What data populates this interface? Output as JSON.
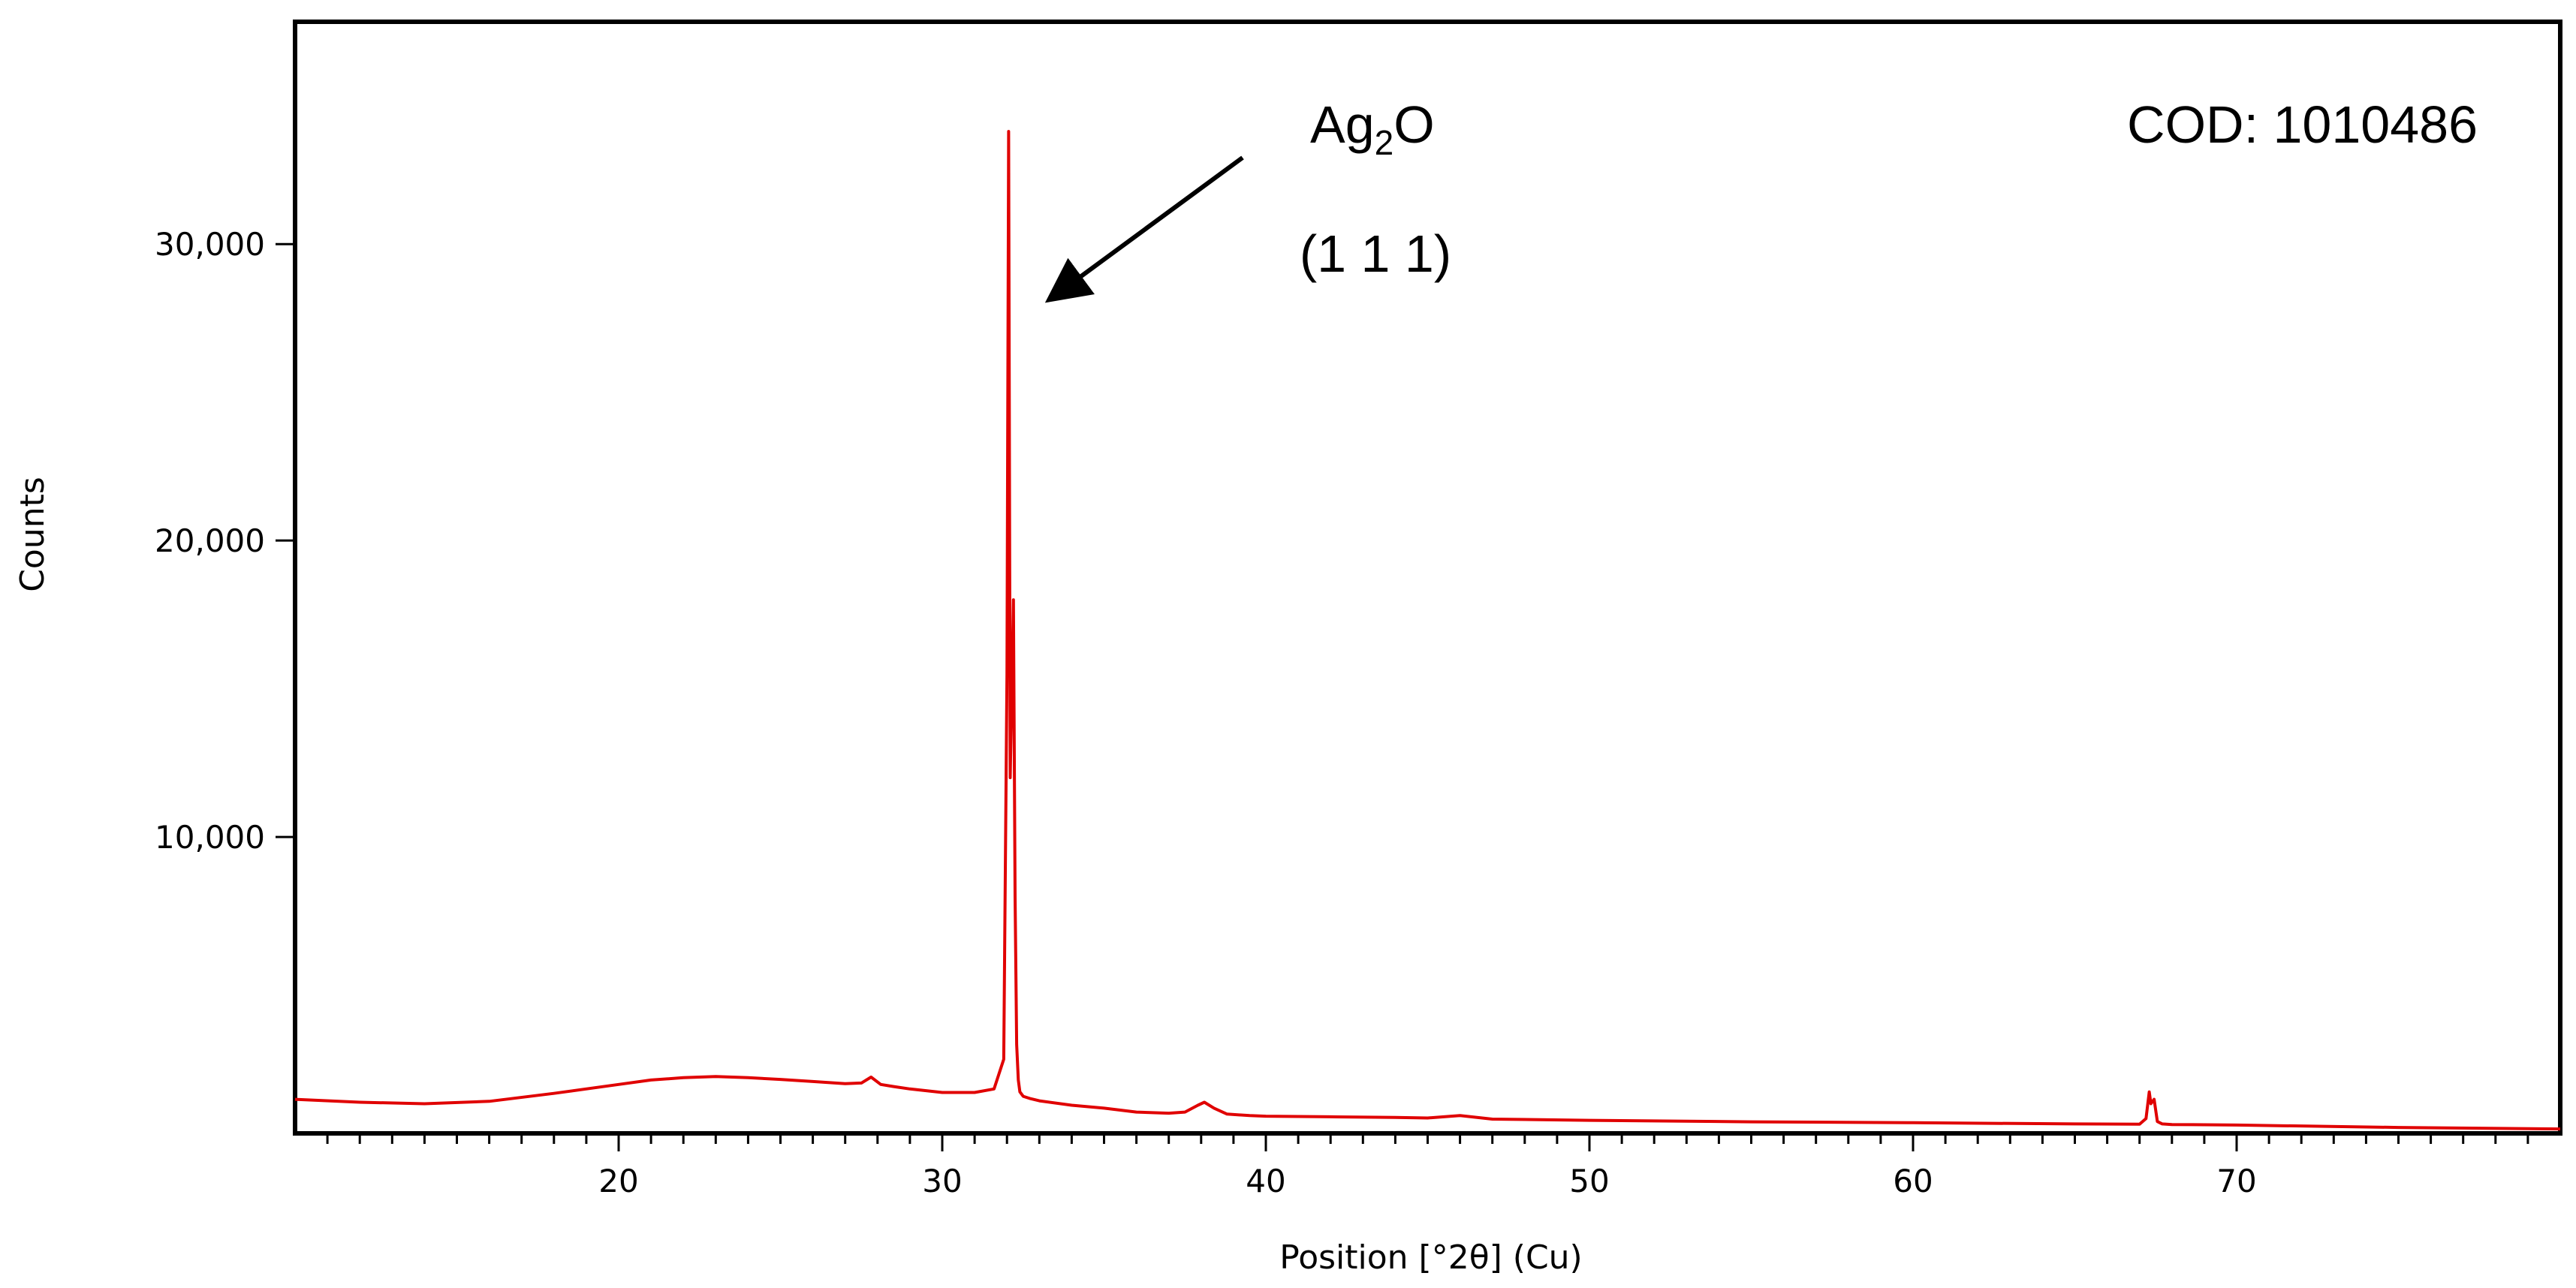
{
  "chart_data": {
    "type": "line",
    "xlabel": "Position [°2θ] (Cu)",
    "ylabel": "Counts",
    "xlim": [
      10,
      80
    ],
    "ylim": [
      0,
      37500
    ],
    "x_ticks": [
      20,
      30,
      40,
      50,
      60,
      70
    ],
    "x_tick_labels": [
      "20",
      "30",
      "40",
      "50",
      "60",
      "70"
    ],
    "y_ticks": [
      10000,
      20000,
      30000
    ],
    "y_tick_labels": [
      "10,000",
      "20,000",
      "30,000"
    ],
    "grid": false,
    "legend": false,
    "series": [
      {
        "color": "#e00000",
        "x": [
          10,
          12,
          14,
          16,
          18,
          20,
          21,
          22,
          23,
          24,
          25,
          26,
          27,
          27.5,
          27.8,
          28.1,
          28.5,
          29,
          30,
          31,
          31.6,
          31.9,
          32.0,
          32.05,
          32.1,
          32.15,
          32.2,
          32.25,
          32.3,
          32.35,
          32.4,
          32.5,
          32.7,
          33,
          34,
          35,
          36,
          37,
          37.5,
          37.9,
          38.1,
          38.4,
          38.8,
          39.5,
          40,
          42,
          44,
          45,
          46,
          47,
          50,
          55,
          60,
          65,
          67,
          67.2,
          67.3,
          67.35,
          67.45,
          67.55,
          67.7,
          68,
          70,
          75,
          80
        ],
        "y": [
          1150,
          1050,
          1000,
          1080,
          1350,
          1650,
          1800,
          1880,
          1920,
          1880,
          1820,
          1750,
          1680,
          1700,
          1900,
          1650,
          1580,
          1500,
          1380,
          1380,
          1500,
          2500,
          15500,
          33800,
          12000,
          15000,
          18000,
          8000,
          3000,
          1800,
          1400,
          1250,
          1180,
          1100,
          950,
          850,
          720,
          680,
          720,
          950,
          1050,
          850,
          650,
          600,
          580,
          560,
          540,
          520,
          600,
          480,
          440,
          390,
          360,
          320,
          310,
          500,
          1400,
          1000,
          1150,
          400,
          320,
          300,
          280,
          200,
          150
        ]
      }
    ],
    "annotations": [
      {
        "text_main": "Ag",
        "text_sub": "2",
        "text_tail": "O",
        "hkl": "(1 1 1)",
        "points_to_x": 33.4,
        "points_to_y": 28200
      },
      {
        "text": "COD: 1010486"
      }
    ]
  }
}
